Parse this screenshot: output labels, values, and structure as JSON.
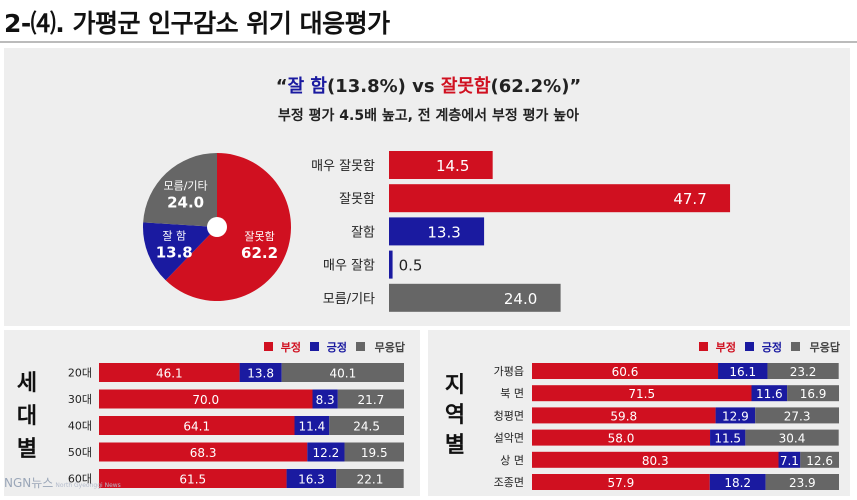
{
  "header": {
    "title": "2-⑷. 가평군 인구감소 위기 대응평가"
  },
  "headline": {
    "quote_open": "“",
    "good_label": "잘 함",
    "good_value": "(13.8%) vs ",
    "bad_label": "잘못함",
    "bad_value": "(62.2%)”",
    "subtitle": "부정 평가 4.5배 높고, 전 계층에서 부정 평가 높아"
  },
  "colors": {
    "negative": "#d01020",
    "positive": "#1a1aa0",
    "neutral": "#666666"
  },
  "chart_data": [
    {
      "type": "pie",
      "slices": [
        {
          "label": "잘못함",
          "value": 62.2,
          "color": "#d01020"
        },
        {
          "label": "잘 함",
          "value": 13.8,
          "color": "#1a1aa0"
        },
        {
          "label": "모름/기타",
          "value": 24.0,
          "color": "#666666"
        }
      ]
    },
    {
      "type": "bar",
      "orientation": "horizontal",
      "categories": [
        "매우 잘못함",
        "잘못함",
        "잘함",
        "매우 잘함",
        "모름/기타"
      ],
      "values": [
        14.5,
        47.7,
        13.3,
        0.5,
        24.0
      ],
      "colors": [
        "#d01020",
        "#d01020",
        "#1a1aa0",
        "#1a1aa0",
        "#666666"
      ]
    },
    {
      "type": "bar",
      "orientation": "horizontal",
      "stacked": true,
      "group_title": "세대별",
      "categories": [
        "20대",
        "30대",
        "40대",
        "50대",
        "60대"
      ],
      "series": [
        {
          "name": "부정",
          "values": [
            46.1,
            70.0,
            64.1,
            68.3,
            61.5
          ],
          "color": "#d01020"
        },
        {
          "name": "긍정",
          "values": [
            13.8,
            8.3,
            11.4,
            12.2,
            16.3
          ],
          "color": "#1a1aa0"
        },
        {
          "name": "무응답",
          "values": [
            40.1,
            21.7,
            24.5,
            19.5,
            22.1
          ],
          "color": "#666666"
        }
      ],
      "legend": "top-right"
    },
    {
      "type": "bar",
      "orientation": "horizontal",
      "stacked": true,
      "group_title": "지역별",
      "categories": [
        "가평읍",
        "북  면",
        "청평면",
        "설악면",
        "상  면",
        "조종면"
      ],
      "series": [
        {
          "name": "부정",
          "values": [
            60.6,
            71.5,
            59.8,
            58.0,
            80.3,
            57.9
          ],
          "color": "#d01020"
        },
        {
          "name": "긍정",
          "values": [
            16.1,
            11.6,
            12.9,
            11.5,
            7.1,
            18.2
          ],
          "color": "#1a1aa0"
        },
        {
          "name": "무응답",
          "values": [
            23.2,
            16.9,
            27.3,
            30.4,
            12.6,
            23.9
          ],
          "color": "#666666"
        }
      ],
      "legend": "top-right"
    }
  ],
  "logo": {
    "text": "NGN뉴스",
    "sub": "North Gyeonggi News"
  }
}
